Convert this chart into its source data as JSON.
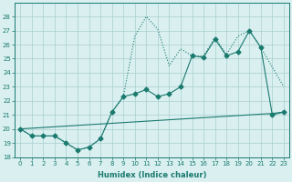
{
  "line1_x": [
    0,
    1,
    2,
    3,
    4,
    5,
    6,
    7,
    8,
    9,
    10,
    11,
    12,
    13,
    14,
    15,
    16,
    17,
    18,
    19,
    20,
    21,
    22,
    23
  ],
  "line1_y": [
    20.0,
    19.5,
    19.5,
    19.5,
    19.0,
    18.5,
    18.7,
    19.3,
    21.2,
    22.3,
    26.6,
    28.0,
    27.1,
    24.5,
    25.7,
    25.2,
    25.2,
    26.5,
    25.3,
    26.6,
    27.0,
    25.8,
    24.4,
    23.0
  ],
  "line2_x": [
    0,
    1,
    2,
    3,
    4,
    5,
    6,
    7,
    8,
    9,
    10,
    11,
    12,
    13,
    14,
    15,
    16,
    17,
    18,
    19,
    20,
    21,
    22,
    23
  ],
  "line2_y": [
    20.0,
    19.5,
    19.5,
    19.5,
    19.0,
    18.5,
    18.7,
    19.3,
    21.2,
    22.3,
    22.5,
    22.8,
    22.3,
    22.5,
    23.0,
    25.2,
    25.1,
    26.4,
    25.2,
    25.5,
    27.0,
    25.8,
    21.0,
    21.2
  ],
  "line3_x": [
    0,
    1,
    2,
    3,
    4,
    5,
    6,
    7,
    8,
    9,
    10,
    11,
    12,
    13,
    14,
    15,
    16,
    17,
    18,
    19,
    20,
    21,
    22,
    23
  ],
  "line3_y": [
    20.0,
    20.05,
    20.1,
    20.15,
    20.2,
    20.25,
    20.3,
    20.35,
    20.4,
    20.45,
    20.5,
    20.55,
    20.6,
    20.65,
    20.7,
    20.75,
    20.8,
    20.85,
    20.9,
    20.95,
    21.0,
    21.05,
    21.1,
    21.2
  ],
  "color": "#1a7a6e",
  "bg_color": "#d9eff0",
  "grid_color": "#aacfcf",
  "xlabel": "Humidex (Indice chaleur)",
  "ylim": [
    18,
    29
  ],
  "xlim": [
    -0.5,
    23.5
  ],
  "yticks": [
    18,
    19,
    20,
    21,
    22,
    23,
    24,
    25,
    26,
    27,
    28
  ],
  "xticks": [
    0,
    1,
    2,
    3,
    4,
    5,
    6,
    7,
    8,
    9,
    10,
    11,
    12,
    13,
    14,
    15,
    16,
    17,
    18,
    19,
    20,
    21,
    22,
    23
  ],
  "marker": "D",
  "markersize": 2.5,
  "linewidth": 0.8,
  "fontsize_ticks": 5,
  "fontsize_xlabel": 6
}
